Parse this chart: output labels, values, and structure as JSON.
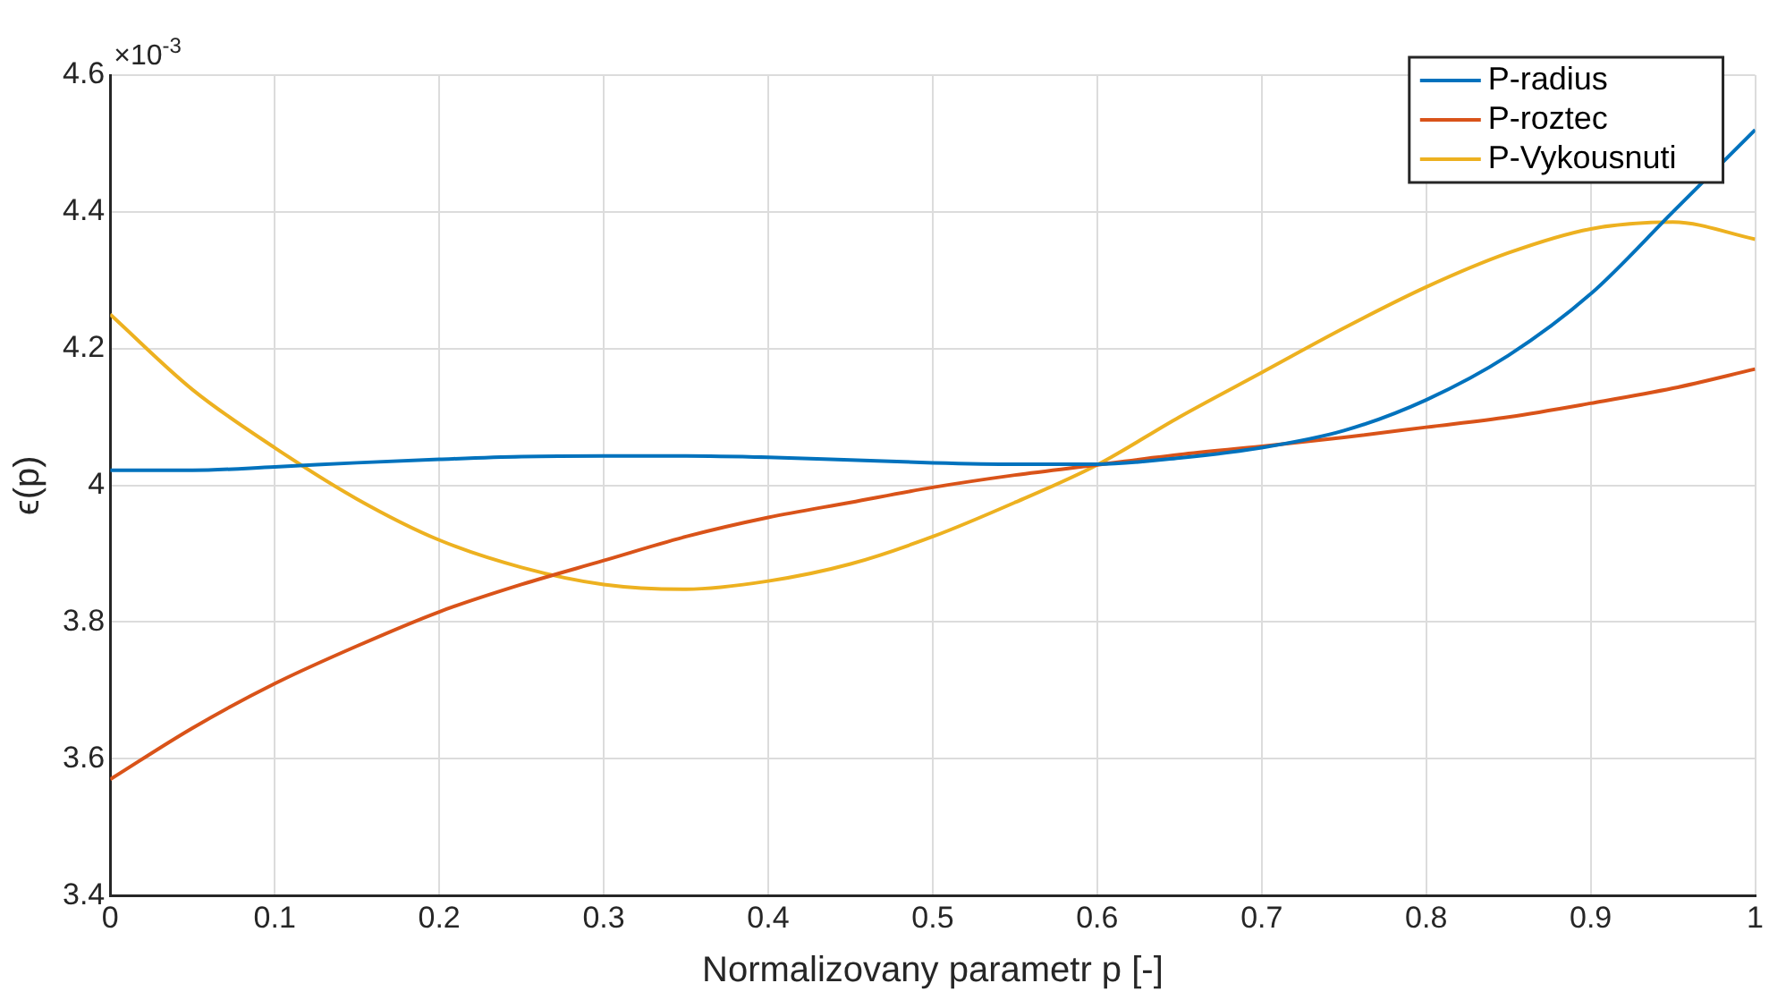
{
  "chart_data": {
    "type": "line",
    "xlabel": "Normalizovany parametr p [-]",
    "ylabel": "ϵ(p)",
    "x": [
      0,
      0.05,
      0.1,
      0.15,
      0.2,
      0.25,
      0.3,
      0.35,
      0.4,
      0.45,
      0.5,
      0.55,
      0.6,
      0.65,
      0.7,
      0.75,
      0.8,
      0.85,
      0.9,
      0.95,
      1
    ],
    "series": [
      {
        "name": "P-radius",
        "color": "#0072bd",
        "values": [
          4.022,
          4.022,
          4.027,
          4.033,
          4.038,
          4.042,
          4.043,
          4.043,
          4.041,
          4.037,
          4.033,
          4.031,
          4.031,
          4.04,
          4.055,
          4.08,
          4.125,
          4.19,
          4.28,
          4.4,
          4.52
        ]
      },
      {
        "name": "P-roztec",
        "color": "#d95319",
        "values": [
          3.57,
          3.645,
          3.71,
          3.765,
          3.815,
          3.855,
          3.89,
          3.925,
          3.953,
          3.975,
          3.997,
          4.015,
          4.03,
          4.045,
          4.057,
          4.07,
          4.085,
          4.1,
          4.12,
          4.142,
          4.17
        ]
      },
      {
        "name": "P-Vykousnuti",
        "color": "#edb120",
        "values": [
          4.25,
          4.14,
          4.055,
          3.98,
          3.92,
          3.88,
          3.855,
          3.848,
          3.86,
          3.885,
          3.925,
          3.975,
          4.03,
          4.1,
          4.165,
          4.23,
          4.29,
          4.34,
          4.375,
          4.385,
          4.36
        ]
      }
    ],
    "xlim": [
      0,
      1
    ],
    "xticks": [
      0,
      0.1,
      0.2,
      0.3,
      0.4,
      0.5,
      0.6,
      0.7,
      0.8,
      0.9,
      1
    ],
    "ylim": [
      3.4,
      4.6
    ],
    "yticks": [
      3.4,
      3.6,
      3.8,
      4,
      4.2,
      4.4,
      4.6
    ],
    "annotations": [
      "×10$^{-3}$"
    ],
    "grid": true,
    "legend": "top right",
    "marker": "none",
    "line_style": "solid"
  }
}
